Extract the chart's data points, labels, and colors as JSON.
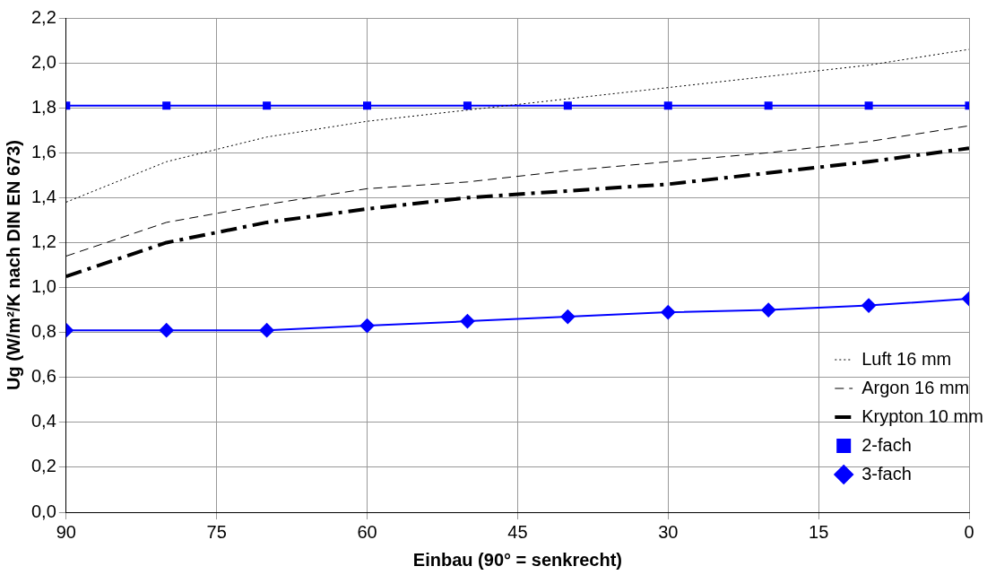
{
  "chart_data": {
    "type": "line",
    "xlabel": "Einbau (90° = senkrecht)",
    "ylabel": "Ug (W/m²/K nach DIN EN 673)",
    "x": [
      90,
      80,
      70,
      60,
      50,
      40,
      30,
      20,
      10,
      0
    ],
    "xlim": [
      90,
      0
    ],
    "xticks": [
      90,
      75,
      60,
      45,
      30,
      15,
      0
    ],
    "ylim": [
      0,
      2.2
    ],
    "yticks": [
      {
        "value": 0,
        "label": "0,0"
      },
      {
        "value": 0.2,
        "label": "0,2"
      },
      {
        "value": 0.4,
        "label": "0,4"
      },
      {
        "value": 0.6,
        "label": "0,6"
      },
      {
        "value": 0.8,
        "label": "0,8"
      },
      {
        "value": 1,
        "label": "1,0"
      },
      {
        "value": 1.2,
        "label": "1,2"
      },
      {
        "value": 1.4,
        "label": "1,4"
      },
      {
        "value": 1.6,
        "label": "1,6"
      },
      {
        "value": 1.8,
        "label": "1,8"
      },
      {
        "value": 2,
        "label": "2,0"
      },
      {
        "value": 2.2,
        "label": "2,2"
      }
    ],
    "grid": true,
    "legend": "bottom right",
    "series": [
      {
        "name": "Luft 16 mm",
        "color": "#000000",
        "line_style": "dotted",
        "marker": "none",
        "values": [
          1.38,
          1.56,
          1.67,
          1.74,
          1.79,
          1.84,
          1.89,
          1.94,
          1.99,
          2.06
        ]
      },
      {
        "name": "Argon 16 mm",
        "color": "#000000",
        "line_style": "dashed",
        "marker": "none",
        "values": [
          1.14,
          1.29,
          1.37,
          1.44,
          1.47,
          1.52,
          1.56,
          1.6,
          1.65,
          1.72
        ]
      },
      {
        "name": "Krypton 10 mm",
        "color": "#000000",
        "line_style": "dashdot",
        "marker": "none",
        "values": [
          1.05,
          1.2,
          1.29,
          1.35,
          1.4,
          1.43,
          1.46,
          1.51,
          1.56,
          1.62
        ]
      },
      {
        "name": "2-fach",
        "color": "#0000ff",
        "line_style": "solid",
        "marker": "square",
        "values": [
          1.81,
          1.81,
          1.81,
          1.81,
          1.81,
          1.81,
          1.81,
          1.81,
          1.81,
          1.81
        ]
      },
      {
        "name": "3-fach",
        "color": "#0000ff",
        "line_style": "solid",
        "marker": "diamond",
        "values": [
          0.81,
          0.81,
          0.81,
          0.83,
          0.85,
          0.87,
          0.89,
          0.9,
          0.92,
          0.95
        ]
      }
    ]
  }
}
